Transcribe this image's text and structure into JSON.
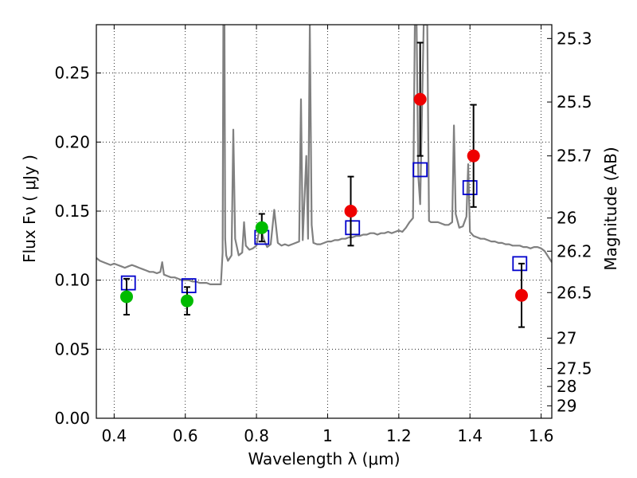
{
  "chart_data": {
    "type": "scatter",
    "xlabel": "Wavelength  λ (μm)",
    "ylabel": "Flux  Fν  ( μJy )",
    "ylabel_right": "Magnitude (AB)",
    "xlim": [
      0.35,
      1.63
    ],
    "ylim": [
      0.0,
      0.285
    ],
    "grid": true,
    "x_ticks": [
      0.4,
      0.6,
      0.8,
      1.0,
      1.2,
      1.4,
      1.6
    ],
    "x_tick_labels": [
      "0.4",
      "0.6",
      "0.8",
      "1",
      "1.2",
      "1.4",
      "1.6"
    ],
    "y_ticks": [
      0.0,
      0.05,
      0.1,
      0.15,
      0.2,
      0.25
    ],
    "y_tick_labels": [
      "0.00",
      "0.05",
      "0.10",
      "0.15",
      "0.20",
      "0.25"
    ],
    "mag_ticks": [
      {
        "label": "25.3",
        "flux": 0.275
      },
      {
        "label": "25.5",
        "flux": 0.229
      },
      {
        "label": "25.7",
        "flux": 0.19
      },
      {
        "label": "26",
        "flux": 0.145
      },
      {
        "label": "26.2",
        "flux": 0.121
      },
      {
        "label": "26.5",
        "flux": 0.091
      },
      {
        "label": "27",
        "flux": 0.058
      },
      {
        "label": "27.5",
        "flux": 0.036
      },
      {
        "label": "28",
        "flux": 0.023
      },
      {
        "label": "29",
        "flux": 0.009
      }
    ],
    "series": [
      {
        "name": "model spectrum",
        "kind": "line",
        "color": "#808080",
        "x": [
          0.35,
          0.36,
          0.37,
          0.38,
          0.39,
          0.4,
          0.41,
          0.42,
          0.43,
          0.44,
          0.45,
          0.46,
          0.47,
          0.48,
          0.49,
          0.5,
          0.51,
          0.52,
          0.53,
          0.535,
          0.54,
          0.55,
          0.56,
          0.57,
          0.58,
          0.59,
          0.6,
          0.61,
          0.62,
          0.63,
          0.64,
          0.65,
          0.66,
          0.67,
          0.68,
          0.69,
          0.7,
          0.705,
          0.707,
          0.71,
          0.712,
          0.715,
          0.72,
          0.73,
          0.735,
          0.74,
          0.75,
          0.76,
          0.765,
          0.77,
          0.78,
          0.79,
          0.8,
          0.81,
          0.82,
          0.83,
          0.84,
          0.85,
          0.86,
          0.87,
          0.88,
          0.89,
          0.9,
          0.91,
          0.92,
          0.925,
          0.93,
          0.94,
          0.945,
          0.95,
          0.955,
          0.96,
          0.97,
          0.98,
          0.99,
          1.0,
          1.01,
          1.02,
          1.03,
          1.04,
          1.05,
          1.06,
          1.07,
          1.08,
          1.09,
          1.1,
          1.11,
          1.12,
          1.13,
          1.14,
          1.15,
          1.16,
          1.17,
          1.18,
          1.19,
          1.2,
          1.21,
          1.22,
          1.23,
          1.24,
          1.245,
          1.25,
          1.255,
          1.26,
          1.265,
          1.27,
          1.28,
          1.285,
          1.29,
          1.3,
          1.31,
          1.32,
          1.33,
          1.34,
          1.35,
          1.355,
          1.36,
          1.37,
          1.38,
          1.39,
          1.395,
          1.4,
          1.41,
          1.42,
          1.43,
          1.44,
          1.45,
          1.46,
          1.47,
          1.48,
          1.49,
          1.5,
          1.51,
          1.52,
          1.53,
          1.54,
          1.55,
          1.56,
          1.57,
          1.58,
          1.59,
          1.6,
          1.61,
          1.62,
          1.63
        ],
        "y": [
          0.116,
          0.114,
          0.113,
          0.112,
          0.111,
          0.112,
          0.111,
          0.11,
          0.109,
          0.11,
          0.111,
          0.11,
          0.109,
          0.108,
          0.107,
          0.106,
          0.106,
          0.105,
          0.106,
          0.113,
          0.104,
          0.103,
          0.102,
          0.102,
          0.101,
          0.1,
          0.1,
          0.1,
          0.099,
          0.099,
          0.098,
          0.098,
          0.098,
          0.097,
          0.097,
          0.097,
          0.097,
          0.12,
          0.285,
          0.285,
          0.13,
          0.118,
          0.114,
          0.118,
          0.209,
          0.13,
          0.118,
          0.12,
          0.142,
          0.125,
          0.122,
          0.123,
          0.125,
          0.14,
          0.13,
          0.124,
          0.126,
          0.151,
          0.127,
          0.125,
          0.126,
          0.125,
          0.126,
          0.127,
          0.128,
          0.231,
          0.129,
          0.19,
          0.13,
          0.285,
          0.14,
          0.127,
          0.126,
          0.126,
          0.127,
          0.128,
          0.128,
          0.129,
          0.129,
          0.13,
          0.13,
          0.131,
          0.131,
          0.132,
          0.132,
          0.133,
          0.133,
          0.134,
          0.134,
          0.133,
          0.134,
          0.134,
          0.135,
          0.134,
          0.135,
          0.136,
          0.135,
          0.138,
          0.142,
          0.145,
          0.285,
          0.285,
          0.175,
          0.155,
          0.22,
          0.285,
          0.285,
          0.143,
          0.142,
          0.142,
          0.142,
          0.141,
          0.14,
          0.14,
          0.142,
          0.212,
          0.148,
          0.138,
          0.139,
          0.146,
          0.184,
          0.135,
          0.132,
          0.131,
          0.13,
          0.13,
          0.129,
          0.128,
          0.128,
          0.127,
          0.127,
          0.126,
          0.126,
          0.125,
          0.125,
          0.125,
          0.124,
          0.124,
          0.123,
          0.124,
          0.124,
          0.123,
          0.121,
          0.117,
          0.113
        ]
      },
      {
        "name": "observed (green)",
        "kind": "points",
        "color": "#00bb00",
        "x": [
          0.435,
          0.605,
          0.815
        ],
        "y": [
          0.088,
          0.085,
          0.138
        ],
        "err": [
          0.013,
          0.01,
          0.01
        ]
      },
      {
        "name": "observed (red)",
        "kind": "points",
        "color": "#ee0000",
        "x": [
          1.065,
          1.26,
          1.41,
          1.545
        ],
        "y": [
          0.15,
          0.231,
          0.19,
          0.089
        ],
        "err": [
          0.025,
          0.041,
          0.037,
          0.023
        ]
      },
      {
        "name": "model synthetic photometry",
        "kind": "squares",
        "color": "#0000cc",
        "x": [
          0.44,
          0.61,
          0.815,
          1.07,
          1.26,
          1.4,
          1.54
        ],
        "y": [
          0.098,
          0.096,
          0.131,
          0.138,
          0.18,
          0.167,
          0.112
        ]
      }
    ]
  }
}
